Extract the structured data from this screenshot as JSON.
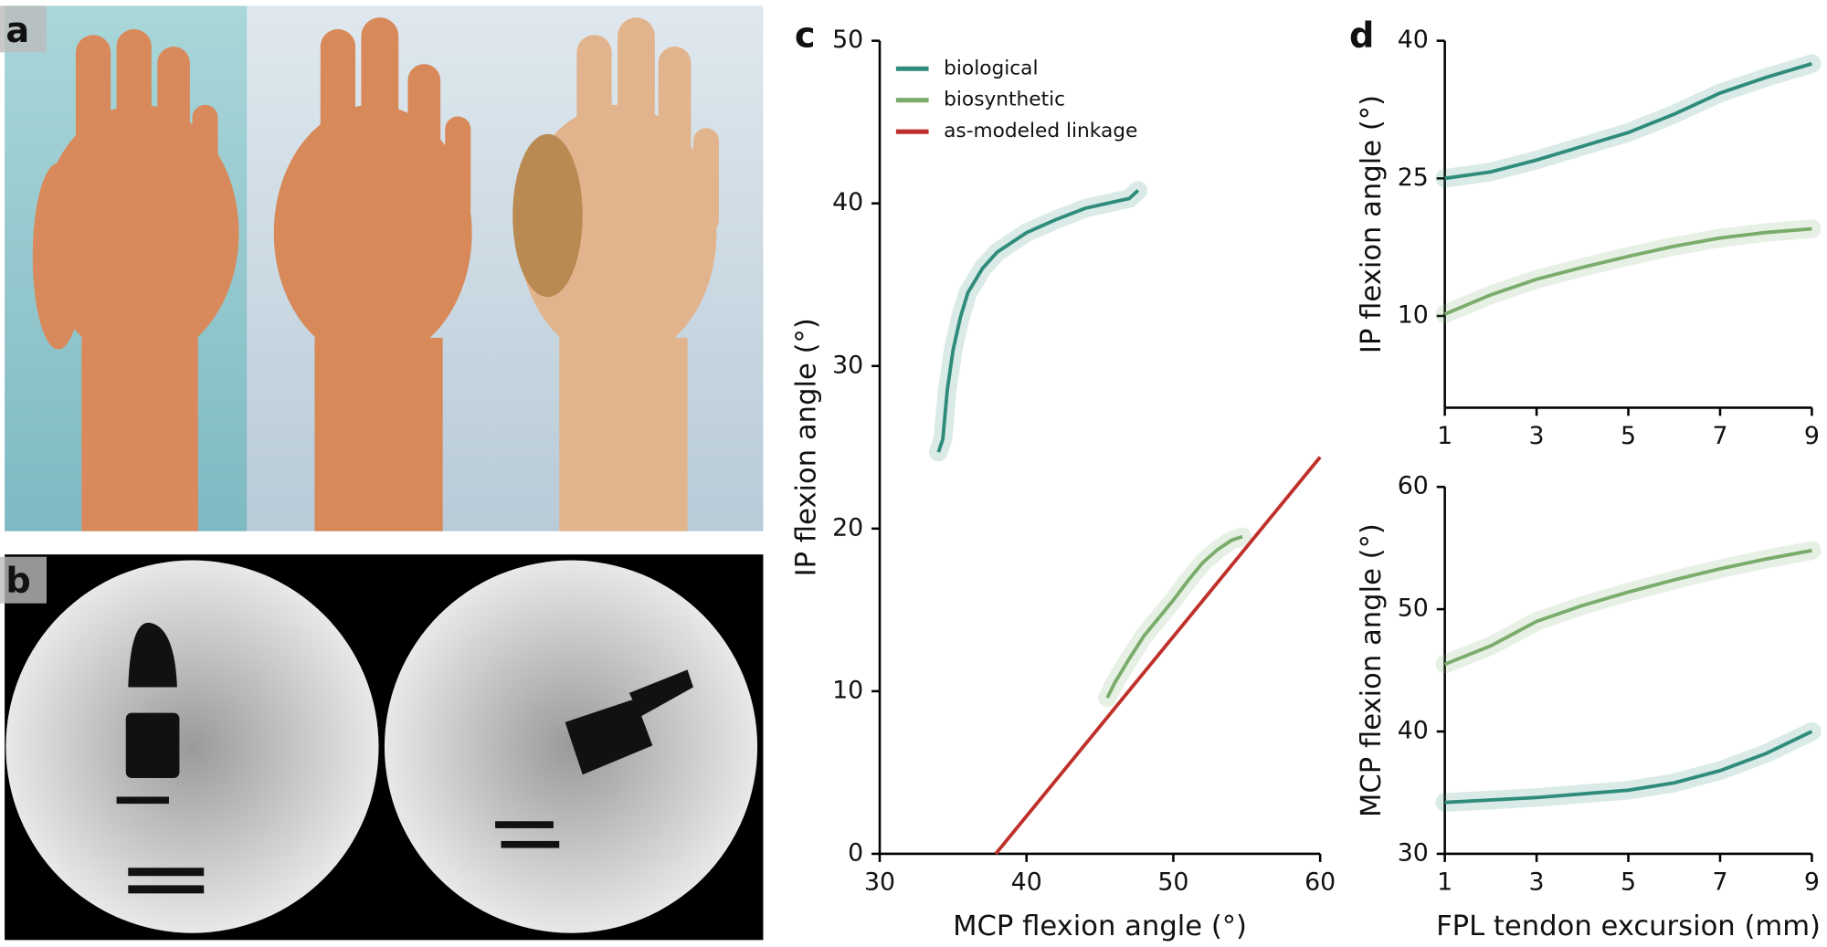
{
  "photo_panels": [
    {
      "label": "a"
    },
    {
      "label": "b"
    }
  ],
  "chart_data": [
    {
      "type": "line",
      "label": "c",
      "x_label": "MCP flexion angle (°)",
      "y_label": "IP flexion angle (°)",
      "xlim": [
        30,
        60
      ],
      "xticks": [
        30,
        40,
        50,
        60
      ],
      "ylim": [
        0,
        50
      ],
      "yticks": [
        0,
        10,
        20,
        30,
        40,
        50
      ],
      "legend": "upper left",
      "series": [
        {
          "name": "biological",
          "color": "#2f8c7b",
          "x": [
            34,
            34.3,
            34.6,
            35,
            35.5,
            36,
            37,
            38,
            40,
            42,
            44,
            46,
            47,
            47.6
          ],
          "values": [
            24.7,
            25.5,
            28.5,
            31,
            33,
            34.5,
            36,
            37,
            38.2,
            39,
            39.7,
            40.1,
            40.3,
            40.8
          ]
        },
        {
          "name": "biosynthetic",
          "color": "#7aac6b",
          "x": [
            45.5,
            46,
            47,
            48,
            49,
            50,
            51,
            52,
            53,
            54,
            54.7
          ],
          "values": [
            9.6,
            10.5,
            12,
            13.4,
            14.5,
            15.6,
            16.8,
            17.9,
            18.7,
            19.3,
            19.5
          ]
        },
        {
          "name": "as-modeled linkage",
          "color": "#c0302a",
          "x": [
            37.9,
            60
          ],
          "values": [
            0,
            24.4
          ]
        }
      ]
    },
    {
      "type": "line",
      "label": "d",
      "y_label": "IP flexion angle (°)",
      "xlim": [
        1,
        9
      ],
      "xticks": [
        1,
        3,
        5,
        7,
        9
      ],
      "ylim": [
        0,
        40
      ],
      "yticks": [
        10,
        25,
        40
      ],
      "series": [
        {
          "color": "#2f8c7b",
          "x": [
            1,
            2,
            3,
            4,
            5,
            6,
            7,
            8,
            9
          ],
          "values": [
            25,
            25.7,
            27,
            28.5,
            30,
            32,
            34.3,
            36,
            37.5
          ]
        },
        {
          "color": "#7aac6b",
          "x": [
            1,
            2,
            3,
            4,
            5,
            6,
            7,
            8,
            9
          ],
          "values": [
            10.2,
            12.3,
            14,
            15.3,
            16.5,
            17.6,
            18.5,
            19.1,
            19.5
          ]
        }
      ]
    },
    {
      "type": "line",
      "x_label": "FPL tendon excursion (mm)",
      "y_label": "MCP flexion angle (°)",
      "xlim": [
        1,
        9
      ],
      "xticks": [
        1,
        3,
        5,
        7,
        9
      ],
      "ylim": [
        30,
        60
      ],
      "yticks": [
        30,
        40,
        50,
        60
      ],
      "series": [
        {
          "color": "#2f8c7b",
          "x": [
            1,
            2,
            3,
            4,
            5,
            6,
            7,
            8,
            9
          ],
          "values": [
            34.2,
            34.4,
            34.6,
            34.9,
            35.2,
            35.8,
            36.8,
            38.2,
            40
          ]
        },
        {
          "color": "#7aac6b",
          "x": [
            1,
            2,
            3,
            4,
            5,
            6,
            7,
            8,
            9
          ],
          "values": [
            45.5,
            47,
            49,
            50.3,
            51.4,
            52.4,
            53.3,
            54.1,
            54.8
          ]
        }
      ]
    }
  ]
}
